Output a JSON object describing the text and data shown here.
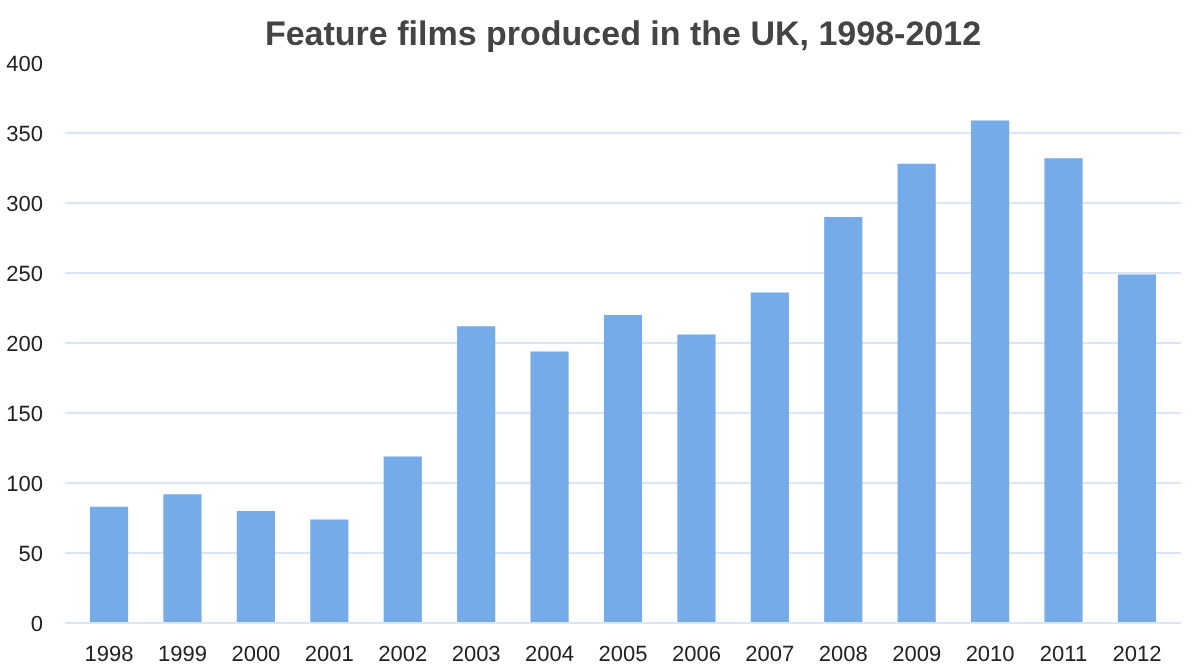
{
  "chart_data": {
    "type": "bar",
    "title": "Feature films produced in the UK, 1998-2012",
    "categories": [
      "1998",
      "1999",
      "2000",
      "2001",
      "2002",
      "2003",
      "2004",
      "2005",
      "2006",
      "2007",
      "2008",
      "2009",
      "2010",
      "2011",
      "2012"
    ],
    "values": [
      83,
      92,
      80,
      74,
      119,
      212,
      194,
      220,
      206,
      236,
      290,
      328,
      359,
      332,
      249
    ],
    "color": "#74abe8",
    "ylim": [
      0,
      400
    ],
    "yticks": [
      0,
      50,
      100,
      150,
      200,
      250,
      300,
      350,
      400
    ],
    "grid": "y"
  }
}
